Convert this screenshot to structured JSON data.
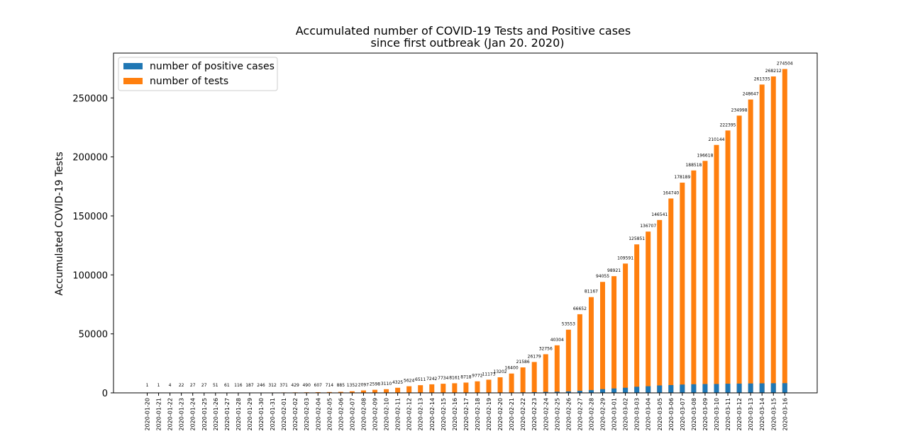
{
  "chart_data": {
    "type": "bar",
    "title": [
      "Accumulated number of COVID-19 Tests and Positive cases",
      "since first outbreak (Jan 20. 2020)"
    ],
    "xlabel": "",
    "ylabel": "Accumulated COVID-19 Tests",
    "ylim": [
      0,
      288000
    ],
    "yticks": [
      0,
      50000,
      100000,
      150000,
      200000,
      250000
    ],
    "grid": false,
    "legend": "top-left",
    "categories": [
      "2020-01-20",
      "2020-01-21",
      "2020-01-22",
      "2020-01-23",
      "2020-01-24",
      "2020-01-25",
      "2020-01-26",
      "2020-01-27",
      "2020-01-28",
      "2020-01-29",
      "2020-01-30",
      "2020-01-31",
      "2020-02-01",
      "2020-02-02",
      "2020-02-03",
      "2020-02-04",
      "2020-02-05",
      "2020-02-06",
      "2020-02-07",
      "2020-02-08",
      "2020-02-09",
      "2020-02-10",
      "2020-02-11",
      "2020-02-12",
      "2020-02-13",
      "2020-02-14",
      "2020-02-15",
      "2020-02-16",
      "2020-02-17",
      "2020-02-18",
      "2020-02-19",
      "2020-02-20",
      "2020-02-21",
      "2020-02-22",
      "2020-02-23",
      "2020-02-24",
      "2020-02-25",
      "2020-02-26",
      "2020-02-27",
      "2020-02-28",
      "2020-02-29",
      "2020-03-01",
      "2020-03-02",
      "2020-03-03",
      "2020-03-04",
      "2020-03-05",
      "2020-03-06",
      "2020-03-07",
      "2020-03-08",
      "2020-03-09",
      "2020-03-10",
      "2020-03-11",
      "2020-03-12",
      "2020-03-13",
      "2020-03-14",
      "2020-03-15",
      "2020-03-16"
    ],
    "series": [
      {
        "name": "number of positive cases",
        "color": "#1f77b4",
        "values": [
          1,
          1,
          1,
          1,
          2,
          2,
          3,
          4,
          4,
          4,
          7,
          11,
          12,
          15,
          15,
          16,
          18,
          23,
          24,
          24,
          25,
          27,
          28,
          28,
          28,
          28,
          28,
          29,
          30,
          31,
          51,
          104,
          204,
          433,
          602,
          833,
          977,
          1261,
          1766,
          2337,
          3150,
          3736,
          4335,
          5186,
          5621,
          6284,
          6593,
          7041,
          7313,
          7478,
          7513,
          7755,
          7869,
          7979,
          8086,
          8162,
          8236
        ]
      },
      {
        "name": "number of tests",
        "color": "#ff7f0e",
        "values": [
          1,
          1,
          4,
          22,
          27,
          27,
          51,
          61,
          116,
          187,
          246,
          312,
          371,
          429,
          490,
          607,
          714,
          885,
          1352,
          2097,
          2598,
          3110,
          4325,
          5624,
          6511,
          7242,
          7734,
          8161,
          8718,
          9772,
          11173,
          13202,
          16400,
          21586,
          26179,
          32756,
          40304,
          53553,
          66652,
          81167,
          94055,
          98921,
          109591,
          125851,
          136707,
          146541,
          164740,
          178189,
          188518,
          196618,
          210144,
          222395,
          234998,
          248647,
          261335,
          268212,
          274504
        ]
      }
    ]
  }
}
